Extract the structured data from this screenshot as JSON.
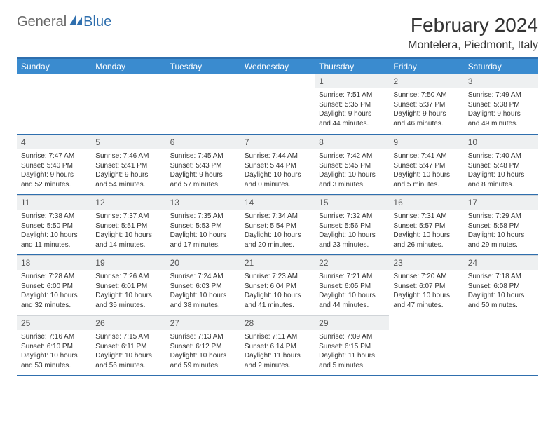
{
  "branding": {
    "name_part1": "General",
    "name_part2": "Blue",
    "color_general": "#666666",
    "color_blue": "#2f6fae"
  },
  "header": {
    "month_title": "February 2024",
    "location": "Montelera, Piedmont, Italy"
  },
  "colors": {
    "header_bar": "#3a8bcf",
    "rule": "#2f6fae",
    "daynum_bg": "#eef0f1",
    "text": "#333333"
  },
  "weekdays": [
    "Sunday",
    "Monday",
    "Tuesday",
    "Wednesday",
    "Thursday",
    "Friday",
    "Saturday"
  ],
  "layout": {
    "first_weekday_index": 4,
    "days_in_month": 29,
    "rows": 5
  },
  "days": {
    "1": {
      "sunrise": "Sunrise: 7:51 AM",
      "sunset": "Sunset: 5:35 PM",
      "daylight1": "Daylight: 9 hours",
      "daylight2": "and 44 minutes."
    },
    "2": {
      "sunrise": "Sunrise: 7:50 AM",
      "sunset": "Sunset: 5:37 PM",
      "daylight1": "Daylight: 9 hours",
      "daylight2": "and 46 minutes."
    },
    "3": {
      "sunrise": "Sunrise: 7:49 AM",
      "sunset": "Sunset: 5:38 PM",
      "daylight1": "Daylight: 9 hours",
      "daylight2": "and 49 minutes."
    },
    "4": {
      "sunrise": "Sunrise: 7:47 AM",
      "sunset": "Sunset: 5:40 PM",
      "daylight1": "Daylight: 9 hours",
      "daylight2": "and 52 minutes."
    },
    "5": {
      "sunrise": "Sunrise: 7:46 AM",
      "sunset": "Sunset: 5:41 PM",
      "daylight1": "Daylight: 9 hours",
      "daylight2": "and 54 minutes."
    },
    "6": {
      "sunrise": "Sunrise: 7:45 AM",
      "sunset": "Sunset: 5:43 PM",
      "daylight1": "Daylight: 9 hours",
      "daylight2": "and 57 minutes."
    },
    "7": {
      "sunrise": "Sunrise: 7:44 AM",
      "sunset": "Sunset: 5:44 PM",
      "daylight1": "Daylight: 10 hours",
      "daylight2": "and 0 minutes."
    },
    "8": {
      "sunrise": "Sunrise: 7:42 AM",
      "sunset": "Sunset: 5:45 PM",
      "daylight1": "Daylight: 10 hours",
      "daylight2": "and 3 minutes."
    },
    "9": {
      "sunrise": "Sunrise: 7:41 AM",
      "sunset": "Sunset: 5:47 PM",
      "daylight1": "Daylight: 10 hours",
      "daylight2": "and 5 minutes."
    },
    "10": {
      "sunrise": "Sunrise: 7:40 AM",
      "sunset": "Sunset: 5:48 PM",
      "daylight1": "Daylight: 10 hours",
      "daylight2": "and 8 minutes."
    },
    "11": {
      "sunrise": "Sunrise: 7:38 AM",
      "sunset": "Sunset: 5:50 PM",
      "daylight1": "Daylight: 10 hours",
      "daylight2": "and 11 minutes."
    },
    "12": {
      "sunrise": "Sunrise: 7:37 AM",
      "sunset": "Sunset: 5:51 PM",
      "daylight1": "Daylight: 10 hours",
      "daylight2": "and 14 minutes."
    },
    "13": {
      "sunrise": "Sunrise: 7:35 AM",
      "sunset": "Sunset: 5:53 PM",
      "daylight1": "Daylight: 10 hours",
      "daylight2": "and 17 minutes."
    },
    "14": {
      "sunrise": "Sunrise: 7:34 AM",
      "sunset": "Sunset: 5:54 PM",
      "daylight1": "Daylight: 10 hours",
      "daylight2": "and 20 minutes."
    },
    "15": {
      "sunrise": "Sunrise: 7:32 AM",
      "sunset": "Sunset: 5:56 PM",
      "daylight1": "Daylight: 10 hours",
      "daylight2": "and 23 minutes."
    },
    "16": {
      "sunrise": "Sunrise: 7:31 AM",
      "sunset": "Sunset: 5:57 PM",
      "daylight1": "Daylight: 10 hours",
      "daylight2": "and 26 minutes."
    },
    "17": {
      "sunrise": "Sunrise: 7:29 AM",
      "sunset": "Sunset: 5:58 PM",
      "daylight1": "Daylight: 10 hours",
      "daylight2": "and 29 minutes."
    },
    "18": {
      "sunrise": "Sunrise: 7:28 AM",
      "sunset": "Sunset: 6:00 PM",
      "daylight1": "Daylight: 10 hours",
      "daylight2": "and 32 minutes."
    },
    "19": {
      "sunrise": "Sunrise: 7:26 AM",
      "sunset": "Sunset: 6:01 PM",
      "daylight1": "Daylight: 10 hours",
      "daylight2": "and 35 minutes."
    },
    "20": {
      "sunrise": "Sunrise: 7:24 AM",
      "sunset": "Sunset: 6:03 PM",
      "daylight1": "Daylight: 10 hours",
      "daylight2": "and 38 minutes."
    },
    "21": {
      "sunrise": "Sunrise: 7:23 AM",
      "sunset": "Sunset: 6:04 PM",
      "daylight1": "Daylight: 10 hours",
      "daylight2": "and 41 minutes."
    },
    "22": {
      "sunrise": "Sunrise: 7:21 AM",
      "sunset": "Sunset: 6:05 PM",
      "daylight1": "Daylight: 10 hours",
      "daylight2": "and 44 minutes."
    },
    "23": {
      "sunrise": "Sunrise: 7:20 AM",
      "sunset": "Sunset: 6:07 PM",
      "daylight1": "Daylight: 10 hours",
      "daylight2": "and 47 minutes."
    },
    "24": {
      "sunrise": "Sunrise: 7:18 AM",
      "sunset": "Sunset: 6:08 PM",
      "daylight1": "Daylight: 10 hours",
      "daylight2": "and 50 minutes."
    },
    "25": {
      "sunrise": "Sunrise: 7:16 AM",
      "sunset": "Sunset: 6:10 PM",
      "daylight1": "Daylight: 10 hours",
      "daylight2": "and 53 minutes."
    },
    "26": {
      "sunrise": "Sunrise: 7:15 AM",
      "sunset": "Sunset: 6:11 PM",
      "daylight1": "Daylight: 10 hours",
      "daylight2": "and 56 minutes."
    },
    "27": {
      "sunrise": "Sunrise: 7:13 AM",
      "sunset": "Sunset: 6:12 PM",
      "daylight1": "Daylight: 10 hours",
      "daylight2": "and 59 minutes."
    },
    "28": {
      "sunrise": "Sunrise: 7:11 AM",
      "sunset": "Sunset: 6:14 PM",
      "daylight1": "Daylight: 11 hours",
      "daylight2": "and 2 minutes."
    },
    "29": {
      "sunrise": "Sunrise: 7:09 AM",
      "sunset": "Sunset: 6:15 PM",
      "daylight1": "Daylight: 11 hours",
      "daylight2": "and 5 minutes."
    }
  }
}
